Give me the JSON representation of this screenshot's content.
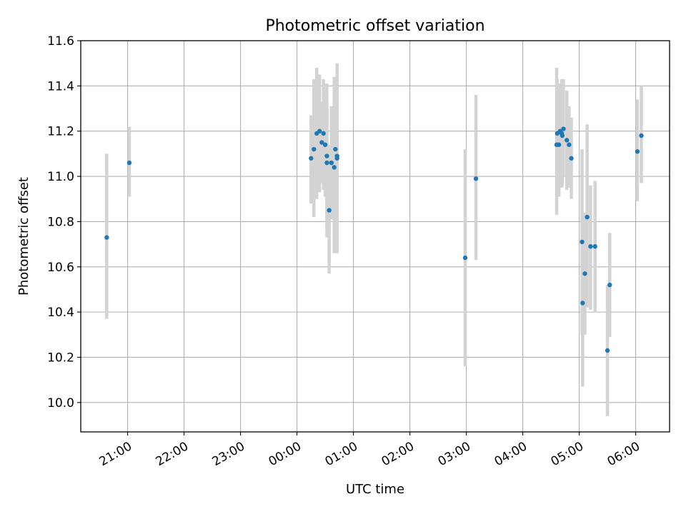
{
  "chart_data": {
    "type": "scatter",
    "title": "Photometric offset variation",
    "xlabel": "UTC time",
    "ylabel": "Photometric offset",
    "x_unit": "hours",
    "xlim": [
      20.17,
      30.6
    ],
    "ylim": [
      9.87,
      11.6
    ],
    "x_ticks": [
      {
        "value": 21,
        "label": "21:00"
      },
      {
        "value": 22,
        "label": "22:00"
      },
      {
        "value": 23,
        "label": "23:00"
      },
      {
        "value": 24,
        "label": "00:00"
      },
      {
        "value": 25,
        "label": "01:00"
      },
      {
        "value": 26,
        "label": "02:00"
      },
      {
        "value": 27,
        "label": "03:00"
      },
      {
        "value": 28,
        "label": "04:00"
      },
      {
        "value": 29,
        "label": "05:00"
      },
      {
        "value": 30,
        "label": "06:00"
      }
    ],
    "y_ticks": [
      {
        "value": 10.0,
        "label": "10.0"
      },
      {
        "value": 10.2,
        "label": "10.2"
      },
      {
        "value": 10.4,
        "label": "10.4"
      },
      {
        "value": 10.6,
        "label": "10.6"
      },
      {
        "value": 10.8,
        "label": "10.8"
      },
      {
        "value": 11.0,
        "label": "11.0"
      },
      {
        "value": 11.2,
        "label": "11.2"
      },
      {
        "value": 11.4,
        "label": "11.4"
      },
      {
        "value": 11.6,
        "label": "11.6"
      }
    ],
    "grid": true,
    "marker_color": "#1f77b4",
    "errorbar_color": "#d3d3d3",
    "points": [
      {
        "x": 20.63,
        "y": 10.73,
        "lo": 10.37,
        "hi": 11.1
      },
      {
        "x": 21.03,
        "y": 11.06,
        "lo": 10.91,
        "hi": 11.22
      },
      {
        "x": 24.25,
        "y": 11.08,
        "lo": 10.88,
        "hi": 11.27
      },
      {
        "x": 24.3,
        "y": 11.12,
        "lo": 10.82,
        "hi": 11.43
      },
      {
        "x": 24.35,
        "y": 11.19,
        "lo": 10.9,
        "hi": 11.48
      },
      {
        "x": 24.4,
        "y": 11.2,
        "lo": 10.93,
        "hi": 11.45
      },
      {
        "x": 24.44,
        "y": 11.15,
        "lo": 10.97,
        "hi": 11.33
      },
      {
        "x": 24.47,
        "y": 11.19,
        "lo": 10.94,
        "hi": 11.43
      },
      {
        "x": 24.5,
        "y": 11.14,
        "lo": 10.91,
        "hi": 11.38
      },
      {
        "x": 24.53,
        "y": 11.09,
        "lo": 10.73,
        "hi": 11.41
      },
      {
        "x": 24.53,
        "y": 11.06,
        "lo": 10.78,
        "hi": 11.3
      },
      {
        "x": 24.57,
        "y": 10.85,
        "lo": 10.57,
        "hi": 11.14
      },
      {
        "x": 24.61,
        "y": 11.06,
        "lo": 10.81,
        "hi": 11.31
      },
      {
        "x": 24.66,
        "y": 11.04,
        "lo": 10.66,
        "hi": 11.44
      },
      {
        "x": 24.68,
        "y": 11.12,
        "lo": 10.82,
        "hi": 11.42
      },
      {
        "x": 24.71,
        "y": 11.09,
        "lo": 10.66,
        "hi": 11.5
      },
      {
        "x": 24.71,
        "y": 11.08,
        "lo": 10.84,
        "hi": 11.32
      },
      {
        "x": 26.98,
        "y": 10.64,
        "lo": 10.16,
        "hi": 11.12
      },
      {
        "x": 27.17,
        "y": 10.99,
        "lo": 10.63,
        "hi": 11.36
      },
      {
        "x": 28.6,
        "y": 11.14,
        "lo": 10.83,
        "hi": 11.48
      },
      {
        "x": 28.61,
        "y": 11.19,
        "lo": 10.93,
        "hi": 11.43
      },
      {
        "x": 28.64,
        "y": 11.14,
        "lo": 10.91,
        "hi": 11.37
      },
      {
        "x": 28.66,
        "y": 11.2,
        "lo": 10.99,
        "hi": 11.41
      },
      {
        "x": 28.69,
        "y": 11.19,
        "lo": 10.95,
        "hi": 11.43
      },
      {
        "x": 28.7,
        "y": 11.18,
        "lo": 10.96,
        "hi": 11.4
      },
      {
        "x": 28.72,
        "y": 11.21,
        "lo": 11.0,
        "hi": 11.43
      },
      {
        "x": 28.78,
        "y": 11.16,
        "lo": 10.94,
        "hi": 11.38
      },
      {
        "x": 28.82,
        "y": 11.14,
        "lo": 10.95,
        "hi": 11.31
      },
      {
        "x": 28.86,
        "y": 11.08,
        "lo": 10.9,
        "hi": 11.26
      },
      {
        "x": 29.05,
        "y": 10.71,
        "lo": 10.3,
        "hi": 11.12
      },
      {
        "x": 29.06,
        "y": 10.44,
        "lo": 10.07,
        "hi": 10.81
      },
      {
        "x": 29.1,
        "y": 10.57,
        "lo": 10.3,
        "hi": 10.84
      },
      {
        "x": 29.14,
        "y": 10.82,
        "lo": 10.42,
        "hi": 11.23
      },
      {
        "x": 29.2,
        "y": 10.69,
        "lo": 10.41,
        "hi": 10.96
      },
      {
        "x": 29.28,
        "y": 10.69,
        "lo": 10.4,
        "hi": 10.98
      },
      {
        "x": 29.5,
        "y": 10.23,
        "lo": 9.94,
        "hi": 10.52
      },
      {
        "x": 29.54,
        "y": 10.52,
        "lo": 10.29,
        "hi": 10.75
      },
      {
        "x": 30.03,
        "y": 11.11,
        "lo": 10.89,
        "hi": 11.34
      },
      {
        "x": 30.1,
        "y": 11.18,
        "lo": 10.97,
        "hi": 11.4
      }
    ]
  }
}
